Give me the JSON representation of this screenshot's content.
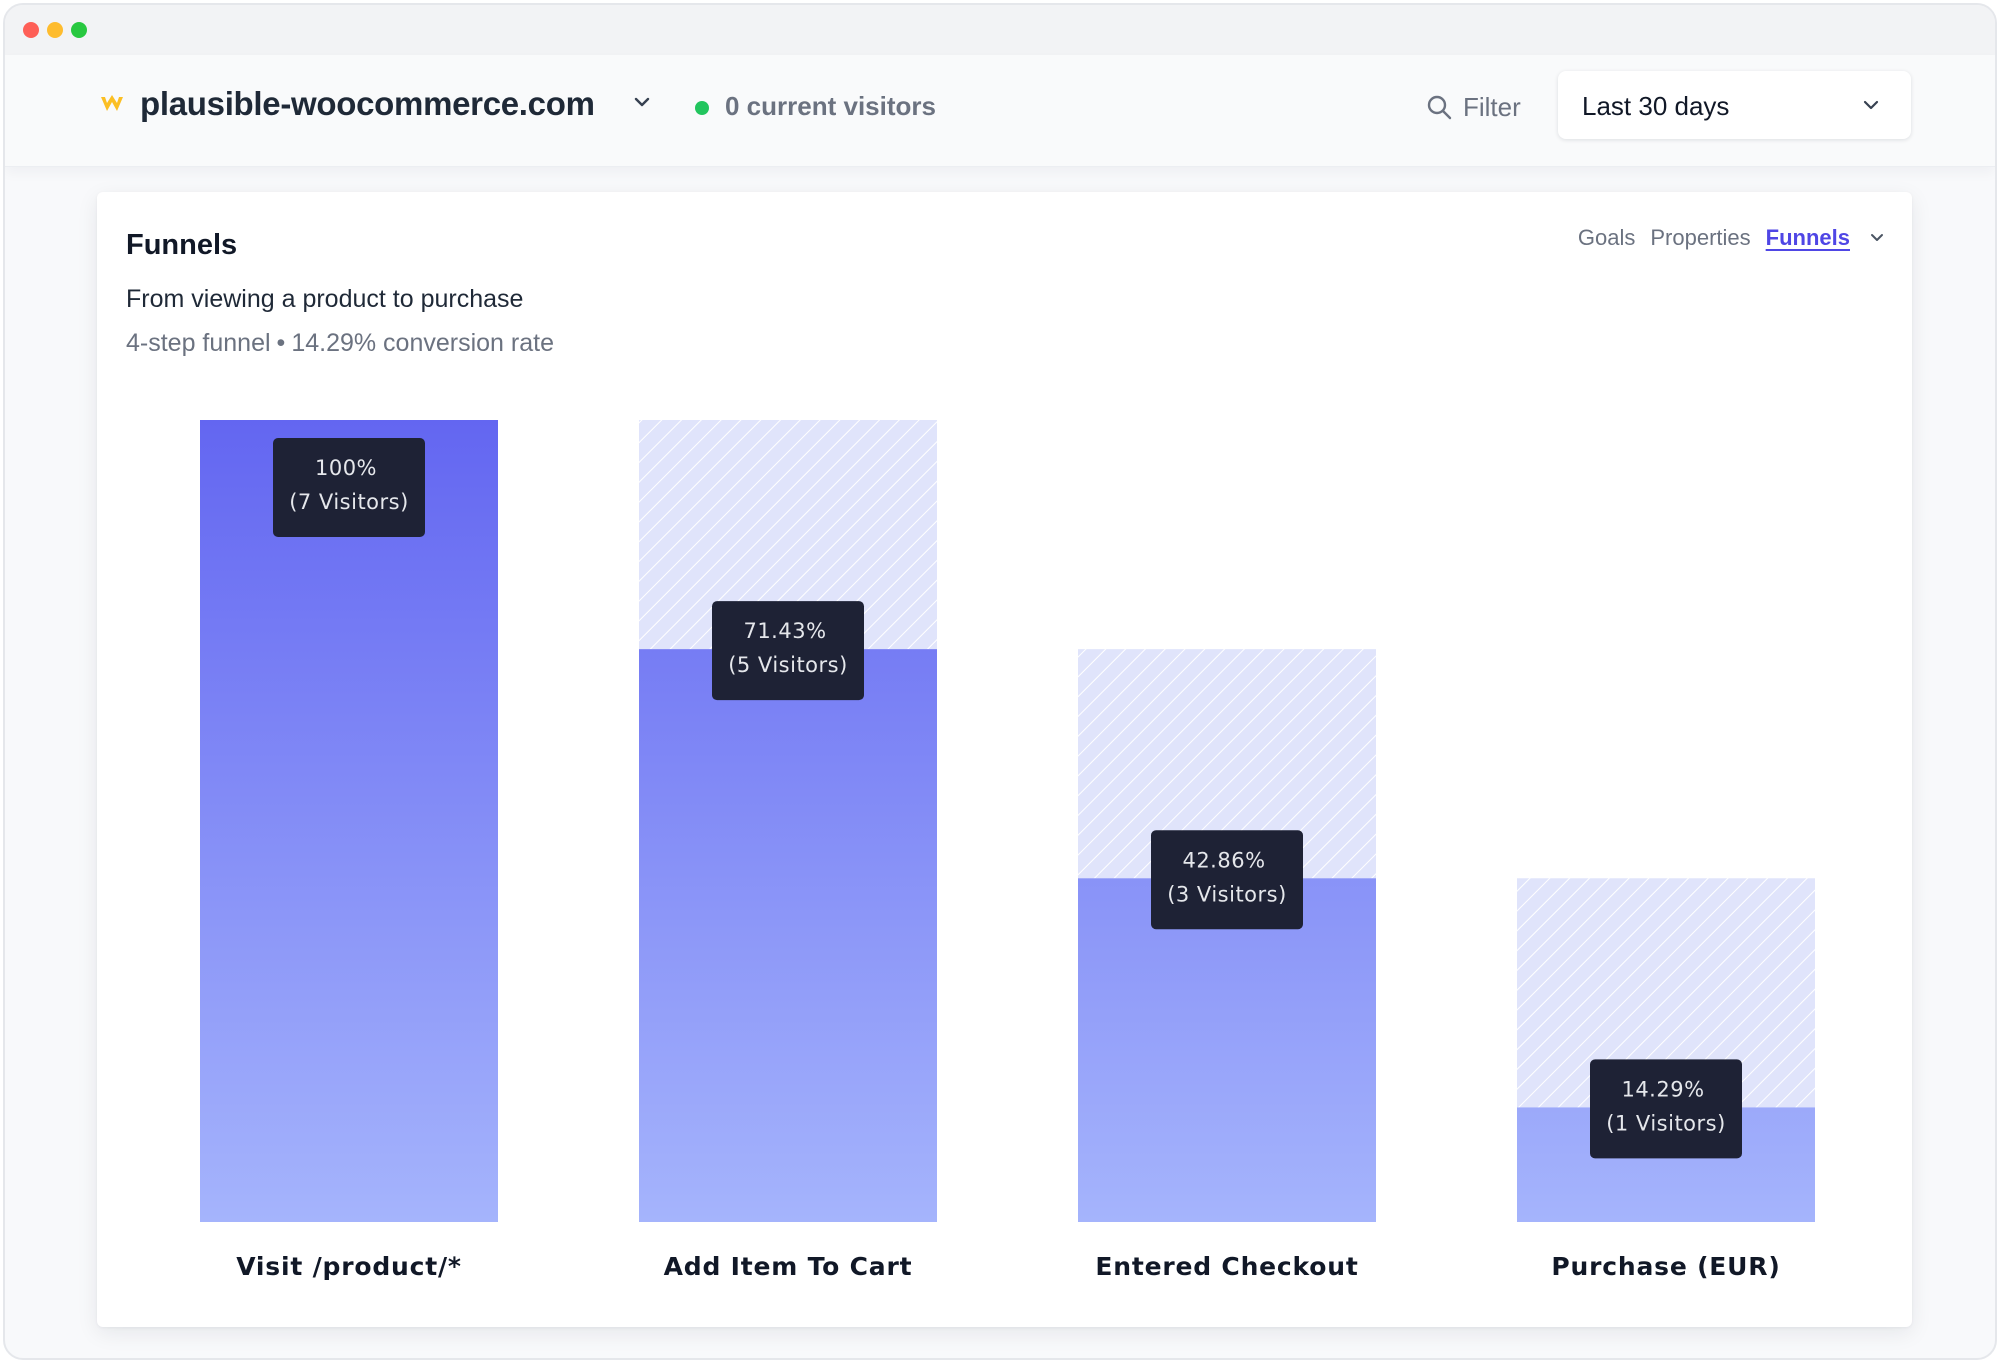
{
  "header": {
    "site_name": "plausible-woocommerce.com",
    "current_visitors": "0 current visitors",
    "filter_label": "Filter",
    "date_range": "Last 30 days"
  },
  "card": {
    "title": "Funnels",
    "tabs": [
      {
        "label": "Goals",
        "active": false
      },
      {
        "label": "Properties",
        "active": false
      },
      {
        "label": "Funnels",
        "active": true
      }
    ],
    "funnel_name": "From viewing a product to purchase",
    "steps_text": "4-step funnel",
    "separator": "•",
    "conversion_text": "14.29% conversion rate"
  },
  "chart_data": {
    "type": "bar",
    "categories": [
      "Visit /product/*",
      "Add Item To Cart",
      "Entered Checkout",
      "Purchase (EUR)"
    ],
    "values": [
      100,
      71.43,
      42.86,
      14.29
    ],
    "visitors": [
      7,
      5,
      3,
      1
    ],
    "tooltips": [
      {
        "percent": "100%",
        "visitors": "(7 Visitors)"
      },
      {
        "percent": "71.43%",
        "visitors": "(5 Visitors)"
      },
      {
        "percent": "42.86%",
        "visitors": "(3 Visitors)"
      },
      {
        "percent": "14.29%",
        "visitors": "(1 Visitors)"
      }
    ],
    "ylim": [
      0,
      100
    ],
    "dropoff_shown": true,
    "colors": {
      "bar_top": "#6366f1",
      "bar_bottom": "#a5b4fc",
      "dropoff_bg": "#e0e4fb",
      "dropoff_stripe": "#ffffff",
      "tooltip_bg": "#1e2235",
      "tooltip_text": "#e5e7eb"
    }
  },
  "colors": {
    "accent": "#4f46e5",
    "live": "#22c55e",
    "logo": "#fbbf24"
  }
}
